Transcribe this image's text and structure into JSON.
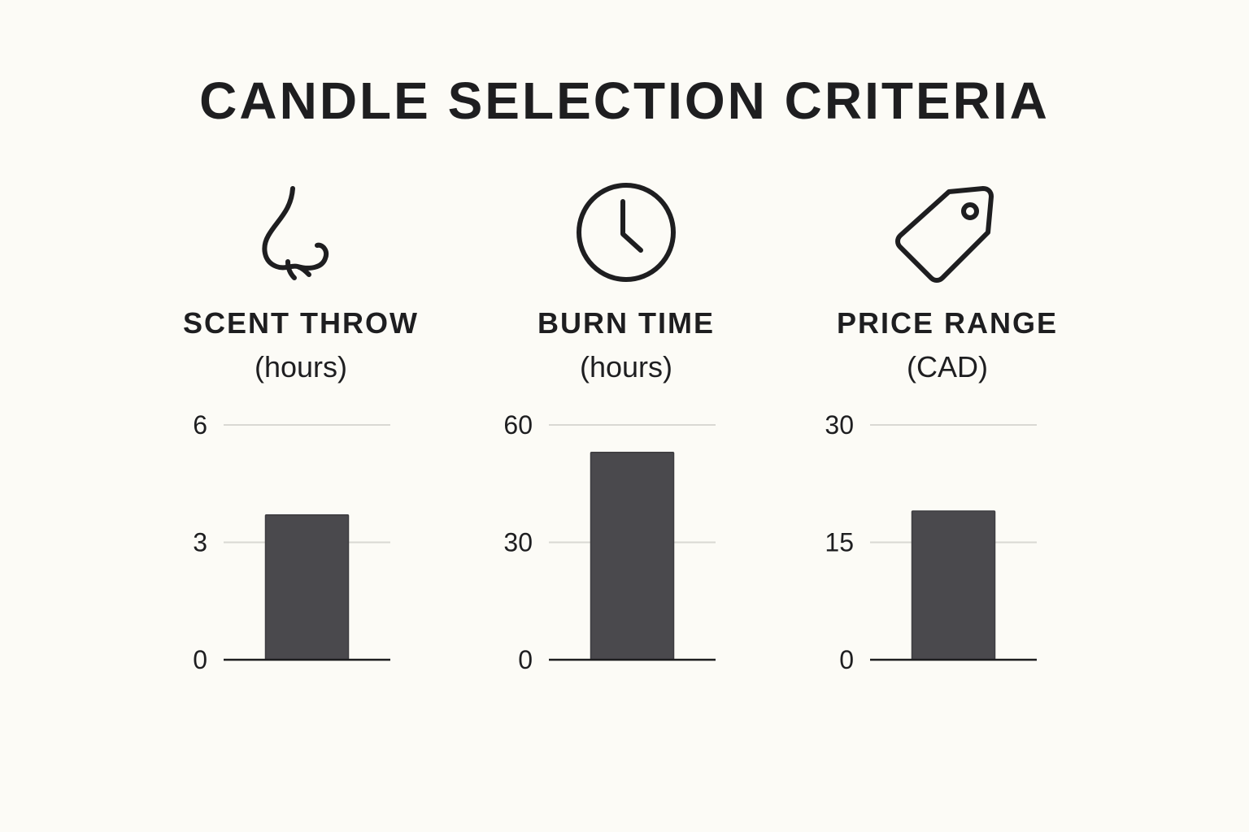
{
  "title": "CANDLE SELECTION CRITERIA",
  "colors": {
    "background": "#fcfbf6",
    "bar": "#4a494d",
    "grid": "#d9d8d3",
    "axis": "#1e1e20",
    "text": "#1e1e20"
  },
  "panels": [
    {
      "icon": "nose-icon",
      "title": "SCENT THROW",
      "unit": "(hours)"
    },
    {
      "icon": "clock-icon",
      "title": "BURN TIME",
      "unit": "(hours)"
    },
    {
      "icon": "price-tag-icon",
      "title": "PRICE RANGE",
      "unit": "(CAD)"
    }
  ],
  "chart_data": [
    {
      "type": "bar",
      "title": "SCENT THROW",
      "ylabel": "(hours)",
      "values": [
        3.7
      ],
      "ylim": [
        0,
        6
      ],
      "yticks": [
        "0",
        "3",
        "6"
      ],
      "grid": true
    },
    {
      "type": "bar",
      "title": "BURN TIME",
      "ylabel": "(hours)",
      "values": [
        53
      ],
      "ylim": [
        0,
        60
      ],
      "yticks": [
        "0",
        "30",
        "60"
      ],
      "grid": true
    },
    {
      "type": "bar",
      "title": "PRICE RANGE",
      "ylabel": "(CAD)",
      "values": [
        19
      ],
      "ylim": [
        0,
        30
      ],
      "yticks": [
        "0",
        "15",
        "30"
      ],
      "grid": true
    }
  ]
}
